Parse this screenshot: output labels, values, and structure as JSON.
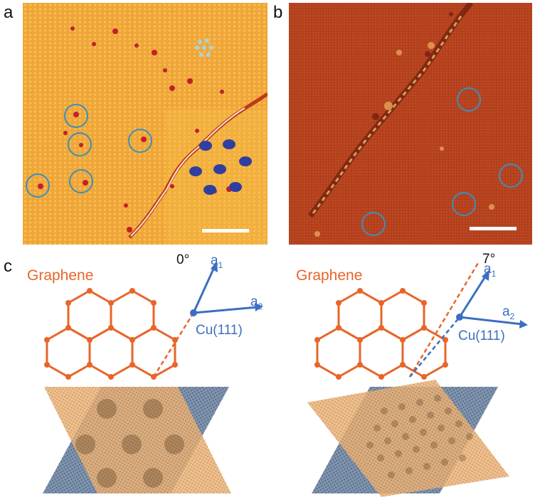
{
  "panels": {
    "a": {
      "label": "a"
    },
    "b": {
      "label": "b"
    },
    "c": {
      "label": "c"
    }
  },
  "panel_c": {
    "left": {
      "graphene_label": "Graphene",
      "angle": "0°",
      "a1_main": "a",
      "a1_sub": "1",
      "a2_main": "a",
      "a2_sub": "2",
      "substrate_label": "Cu(111)"
    },
    "right": {
      "graphene_label": "Graphene",
      "angle": "7°",
      "a1_main": "a",
      "a1_sub": "1",
      "a2_main": "a",
      "a2_sub": "2",
      "substrate_label": "Cu(111)"
    }
  },
  "colors": {
    "stm_a_base": "#f2a93a",
    "stm_b_base": "#b8441f",
    "graphene": "#e8652a",
    "cu_lattice": "#3b6fc2",
    "ring": "#3a8fbf",
    "dark_dot": "#2f3fa0",
    "light_dot": "#a9d3df"
  }
}
